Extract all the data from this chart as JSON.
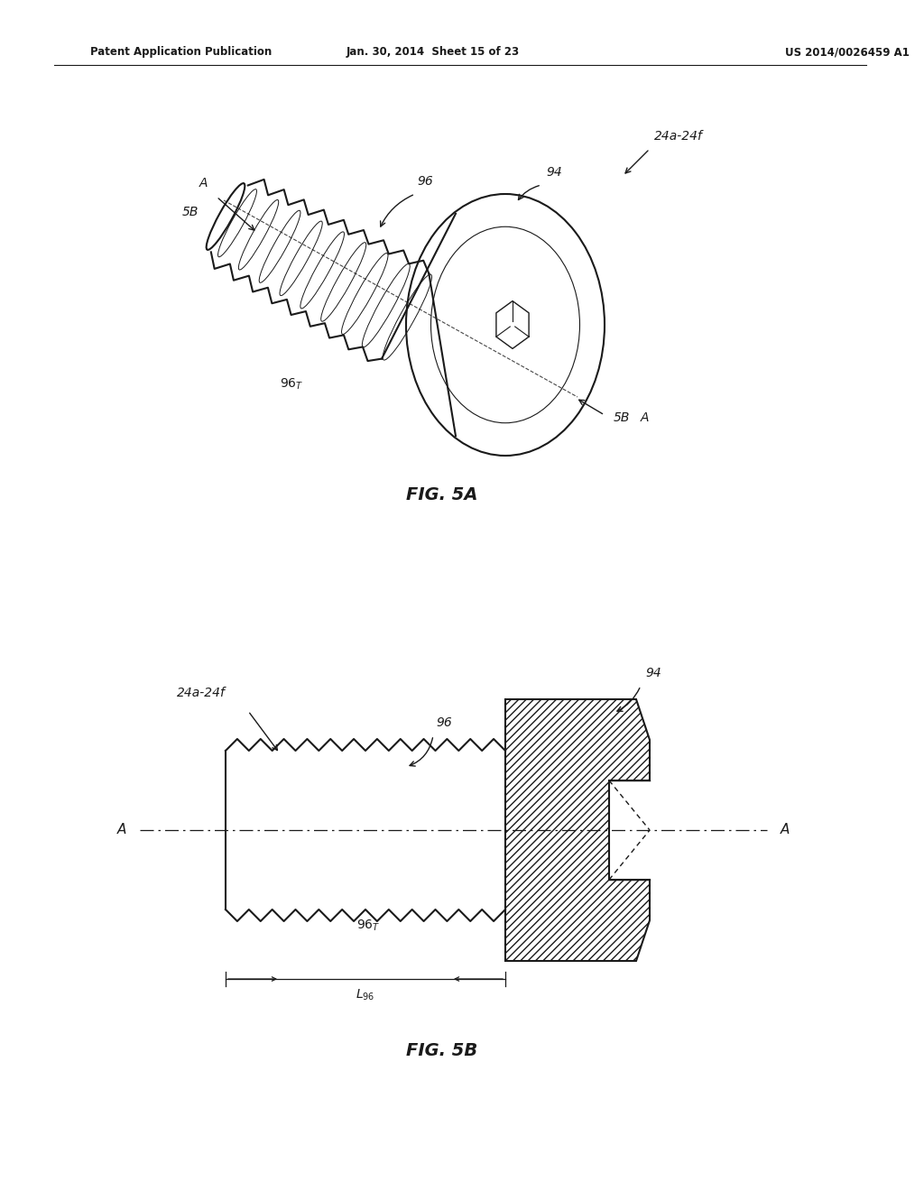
{
  "bg_color": "#ffffff",
  "line_color": "#1a1a1a",
  "fig_width": 10.24,
  "fig_height": 13.2,
  "header_left": "Patent Application Publication",
  "header_mid": "Jan. 30, 2014  Sheet 15 of 23",
  "header_right": "US 2014/0026459 A1",
  "fig5a_label": "FIG. 5A",
  "fig5b_label": "FIG. 5B"
}
